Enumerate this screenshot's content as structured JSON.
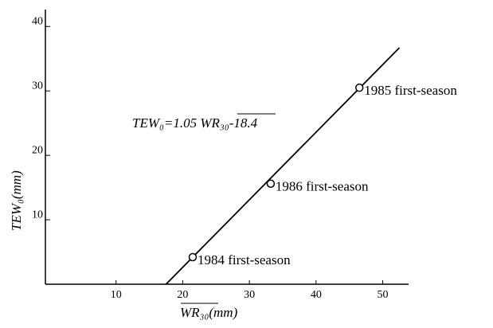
{
  "chart_data": {
    "type": "scatter",
    "x": [
      21.5,
      33.2,
      46.5
    ],
    "values": [
      4.2,
      15.6,
      30.5
    ],
    "point_labels": [
      "1984 first-season",
      "1986 first-season",
      "1985 first-season"
    ],
    "fit_line": {
      "x": [
        17.5,
        52.5
      ],
      "y": [
        0,
        36.7
      ]
    },
    "equation": "TEW₀=1.05 WR₃₀-18.4",
    "x_label": "WR₃₀(mm)",
    "y_label": "TEW₀(mm)",
    "xlim": [
      0,
      54
    ],
    "ylim": [
      0,
      43
    ],
    "xticks": [
      10,
      20,
      30,
      40,
      50
    ],
    "yticks": [
      10,
      20,
      30,
      40
    ],
    "color": "#000000"
  }
}
